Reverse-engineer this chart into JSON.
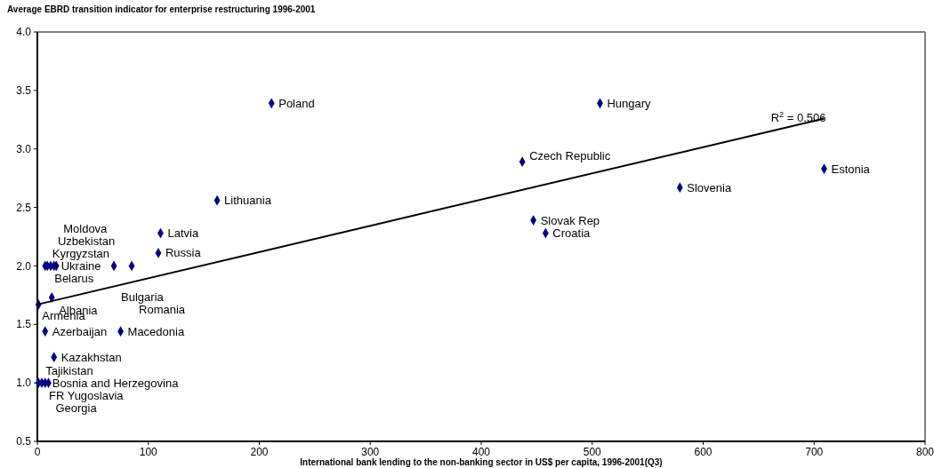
{
  "chart_data": {
    "type": "scatter",
    "title": "Average EBRD transition indicator for enterprise restructuring 1996-2001",
    "xlabel": "International bank lending to the  non-banking sector in US$ per capita, 1996-2001(Q3)",
    "xlim": [
      0,
      800
    ],
    "xticks": [
      0,
      100,
      200,
      300,
      400,
      500,
      600,
      700,
      800
    ],
    "ylim": [
      0.5,
      4.0
    ],
    "yticks": [
      {
        "value": 0.5,
        "label": "0.5"
      },
      {
        "value": 1.0,
        "label": "1.0"
      },
      {
        "value": 1.5,
        "label": "1.5"
      },
      {
        "value": 2.0,
        "label": "2.0"
      },
      {
        "value": 2.5,
        "label": "2.5"
      },
      {
        "value": 3.0,
        "label": "3.0"
      },
      {
        "value": 3.5,
        "label": "3.5"
      },
      {
        "value": 4.0,
        "label": "4.0"
      }
    ],
    "grid": false,
    "legend": false,
    "marker": "diamond",
    "series": [
      {
        "color": "#000080",
        "x": [
          7,
          9,
          12,
          15,
          17,
          211,
          507,
          437,
          709,
          579,
          162,
          447,
          458,
          111,
          109,
          69,
          85,
          13,
          1,
          7,
          75,
          15,
          1,
          4,
          7,
          10
        ],
        "values": [
          2.0,
          2.0,
          2.0,
          2.0,
          2.0,
          3.39,
          3.39,
          2.89,
          2.83,
          2.67,
          2.56,
          2.39,
          2.28,
          2.28,
          2.11,
          2.0,
          2.0,
          1.73,
          1.67,
          1.44,
          1.44,
          1.22,
          1.0,
          1.0,
          1.0,
          1.0
        ],
        "value_labels": [
          "Kyrgyzstan",
          "Belarus",
          "Uzbekistan",
          "Ukraine",
          "Moldova",
          "Poland",
          "Hungary",
          "Czech Republic",
          "Estonia",
          "Slovenia",
          "Lithuania",
          "Slovak Rep",
          "Croatia",
          "Latvia",
          "Russia",
          "Bulgaria",
          "Romania",
          "Albania",
          "Armenia",
          "Azerbaijan",
          "Macedonia",
          "Kazakhstan",
          "Tajikistan",
          "FR Yugoslavia",
          "Bosnia and Herzegovina",
          "Georgia"
        ]
      },
      {
        "type": "line",
        "color": "#000000",
        "marker": "none",
        "line_style": "solid",
        "x": [
          0,
          709
        ],
        "values": [
          1.67,
          3.26
        ]
      }
    ],
    "annotations": [
      {
        "text": "R$^{2}$ = 0.506",
        "x": 709,
        "y": 3.26
      }
    ]
  }
}
